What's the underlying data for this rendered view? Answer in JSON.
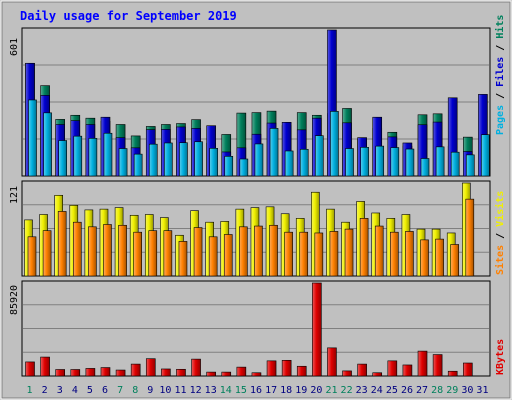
{
  "chart_data": {
    "type": "bar",
    "title": "Daily usage for September 2019",
    "categories": [
      "1",
      "2",
      "3",
      "4",
      "5",
      "6",
      "7",
      "8",
      "9",
      "10",
      "11",
      "12",
      "13",
      "14",
      "15",
      "16",
      "17",
      "18",
      "19",
      "20",
      "21",
      "22",
      "23",
      "24",
      "25",
      "26",
      "27",
      "28",
      "29",
      "30",
      "31"
    ],
    "weekend_categories": [
      "1",
      "7",
      "8",
      "14",
      "15",
      "21",
      "22",
      "28",
      "29"
    ],
    "panels": [
      {
        "id": "hits",
        "ymax_label": "601",
        "ylim": [
          0,
          601
        ],
        "series": [
          {
            "name": "Hits",
            "color": "#00805c",
            "values": [
              464,
              372,
              233,
              250,
              238,
              225,
              212,
              165,
              204,
              212,
              216,
              232,
              135,
              171,
              259,
              261,
              267,
              208,
              261,
              250,
              257,
              278,
              152,
              196,
              180,
              123,
              252,
              256,
              122,
              160,
              0
            ]
          },
          {
            "name": "Files",
            "color": "#0000d0",
            "values": [
              464,
              332,
              212,
              228,
              212,
              242,
              158,
              116,
              191,
              192,
              202,
              196,
              207,
              99,
              116,
              172,
              218,
              221,
              190,
              238,
              601,
              219,
              158,
              242,
              161,
              136,
              211,
              222,
              322,
              101,
              336
            ]
          },
          {
            "name": "Pages",
            "color": "#00b0e0",
            "values": [
              313,
              260,
              146,
              164,
              155,
              176,
              113,
              90,
              131,
              136,
              137,
              141,
              114,
              81,
              70,
              132,
              196,
              103,
              110,
              166,
              266,
              113,
              118,
              123,
              117,
              111,
              72,
              120,
              98,
              87,
              170
            ]
          }
        ]
      },
      {
        "id": "visits",
        "ymax_label": "121",
        "ylim": [
          0,
          121
        ],
        "series": [
          {
            "name": "Visits",
            "color": "#f0f000",
            "values": [
              73,
              80,
              105,
              92,
              86,
              87,
              89,
              79,
              80,
              76,
              53,
              85,
              70,
              71,
              87,
              89,
              90,
              81,
              75,
              109,
              87,
              70,
              97,
              82,
              75,
              80,
              61,
              61,
              56,
              121,
              0
            ]
          },
          {
            "name": "Sites",
            "color": "#ff8000",
            "values": [
              51,
              59,
              84,
              70,
              64,
              67,
              66,
              57,
              59,
              59,
              45,
              63,
              51,
              54,
              64,
              65,
              66,
              57,
              57,
              56,
              58,
              61,
              75,
              65,
              57,
              58,
              47,
              48,
              41,
              100,
              0
            ]
          }
        ]
      },
      {
        "id": "kbytes",
        "ymax_label": "85920",
        "ylim": [
          0,
          85920
        ],
        "series": [
          {
            "name": "KBytes",
            "color": "#e00000",
            "values": [
              13000,
              17500,
              6000,
              6000,
              7000,
              7800,
              5500,
              11000,
              16000,
              6500,
              6200,
              15600,
              3600,
              3600,
              8200,
              3000,
              14000,
              14500,
              9000,
              85920,
              26000,
              4700,
              11000,
              3000,
              14000,
              10200,
              23000,
              19800,
              4400,
              12000,
              0
            ]
          }
        ]
      }
    ],
    "axis_labels": {
      "hits_panel": [
        "Hits",
        "Files",
        "Pages"
      ],
      "visits_panel": [
        "Visits",
        "Sites"
      ],
      "kbytes_panel": [
        "KBytes"
      ]
    },
    "colors": {
      "background": "#c0c0c0",
      "panel": "#c0c0c0",
      "title": "#0000ff",
      "day_label": "#000080",
      "weekend_label": "#00805c",
      "grid": "#808080",
      "separator": "#000000"
    }
  }
}
